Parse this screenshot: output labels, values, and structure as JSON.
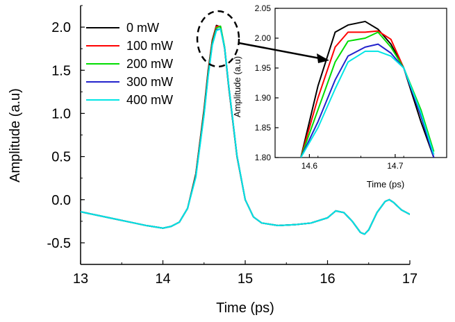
{
  "chart_data": [
    {
      "type": "line",
      "xlabel": "Time (ps)",
      "ylabel": "Amplitude (a.u)",
      "xlim": [
        13,
        17
      ],
      "ylim": [
        -0.75,
        2.25
      ],
      "x_ticks": [
        "13",
        "14",
        "15",
        "16",
        "17"
      ],
      "y_ticks": [
        "-0.5",
        "0.0",
        "0.5",
        "1.0",
        "1.5",
        "2.0"
      ],
      "legend_position": "top-left",
      "x": [
        13.0,
        13.2,
        13.4,
        13.6,
        13.8,
        14.0,
        14.1,
        14.2,
        14.3,
        14.4,
        14.5,
        14.55,
        14.6,
        14.65,
        14.7,
        14.75,
        14.8,
        14.9,
        15.0,
        15.1,
        15.2,
        15.4,
        15.6,
        15.8,
        16.0,
        16.1,
        16.2,
        16.3,
        16.4,
        16.45,
        16.5,
        16.6,
        16.7,
        16.75,
        16.8,
        16.9,
        17.0
      ],
      "series": [
        {
          "name": "0 mW",
          "color": "#000000",
          "values": [
            -0.14,
            -0.18,
            -0.22,
            -0.26,
            -0.3,
            -0.33,
            -0.31,
            -0.26,
            -0.1,
            0.3,
            1.05,
            1.5,
            1.85,
            2.02,
            2.0,
            1.75,
            1.3,
            0.5,
            0.0,
            -0.2,
            -0.27,
            -0.3,
            -0.29,
            -0.27,
            -0.21,
            -0.13,
            -0.15,
            -0.25,
            -0.38,
            -0.4,
            -0.35,
            -0.15,
            -0.02,
            0.0,
            -0.03,
            -0.12,
            -0.17
          ]
        },
        {
          "name": "100 mW",
          "color": "#ff0000",
          "values": [
            -0.14,
            -0.18,
            -0.22,
            -0.26,
            -0.3,
            -0.33,
            -0.31,
            -0.26,
            -0.1,
            0.29,
            1.03,
            1.48,
            1.84,
            2.01,
            2.01,
            1.76,
            1.31,
            0.5,
            0.0,
            -0.2,
            -0.27,
            -0.3,
            -0.29,
            -0.27,
            -0.21,
            -0.13,
            -0.15,
            -0.25,
            -0.38,
            -0.4,
            -0.35,
            -0.15,
            -0.02,
            0.0,
            -0.03,
            -0.12,
            -0.17
          ]
        },
        {
          "name": "200 mW",
          "color": "#00dd00",
          "values": [
            -0.14,
            -0.18,
            -0.22,
            -0.26,
            -0.3,
            -0.33,
            -0.31,
            -0.26,
            -0.1,
            0.28,
            1.01,
            1.46,
            1.82,
            1.99,
            2.01,
            1.77,
            1.32,
            0.51,
            0.0,
            -0.2,
            -0.27,
            -0.3,
            -0.29,
            -0.27,
            -0.21,
            -0.13,
            -0.15,
            -0.25,
            -0.38,
            -0.4,
            -0.35,
            -0.15,
            -0.02,
            0.0,
            -0.03,
            -0.12,
            -0.17
          ]
        },
        {
          "name": "300 mW",
          "color": "#2222cc",
          "values": [
            -0.14,
            -0.18,
            -0.22,
            -0.26,
            -0.3,
            -0.33,
            -0.31,
            -0.26,
            -0.1,
            0.27,
            0.99,
            1.44,
            1.8,
            1.97,
            1.98,
            1.76,
            1.32,
            0.51,
            0.0,
            -0.2,
            -0.27,
            -0.3,
            -0.29,
            -0.27,
            -0.21,
            -0.13,
            -0.15,
            -0.25,
            -0.38,
            -0.4,
            -0.35,
            -0.15,
            -0.02,
            0.0,
            -0.03,
            -0.12,
            -0.17
          ]
        },
        {
          "name": "400 mW",
          "color": "#00e5e5",
          "values": [
            -0.14,
            -0.18,
            -0.22,
            -0.26,
            -0.3,
            -0.33,
            -0.31,
            -0.26,
            -0.1,
            0.26,
            0.98,
            1.43,
            1.79,
            1.96,
            1.98,
            1.76,
            1.32,
            0.51,
            0.0,
            -0.2,
            -0.27,
            -0.3,
            -0.29,
            -0.27,
            -0.21,
            -0.13,
            -0.15,
            -0.25,
            -0.38,
            -0.4,
            -0.35,
            -0.15,
            -0.02,
            0.0,
            -0.03,
            -0.12,
            -0.17
          ]
        }
      ]
    },
    {
      "type": "line",
      "inset": true,
      "xlabel": "Time (ps)",
      "ylabel": "Amplitude (a.u)",
      "xlim": [
        14.56,
        14.76
      ],
      "ylim": [
        1.8,
        2.05
      ],
      "x_ticks": [
        "14.6",
        "14.7"
      ],
      "y_ticks": [
        "1.80",
        "1.85",
        "1.90",
        "1.95",
        "2.00",
        "2.05"
      ],
      "x": [
        14.59,
        14.61,
        14.63,
        14.645,
        14.665,
        14.68,
        14.695,
        14.71,
        14.73,
        14.745
      ],
      "series": [
        {
          "name": "0 mW",
          "color": "#000000",
          "values": [
            1.8,
            1.92,
            2.01,
            2.022,
            2.028,
            2.015,
            1.99,
            1.95,
            1.86,
            1.8
          ]
        },
        {
          "name": "100 mW",
          "color": "#ff0000",
          "values": [
            1.8,
            1.9,
            1.985,
            2.01,
            2.01,
            2.012,
            1.998,
            1.95,
            1.87,
            1.805
          ]
        },
        {
          "name": "200 mW",
          "color": "#00dd00",
          "values": [
            1.8,
            1.88,
            1.96,
            1.995,
            2.0,
            2.01,
            1.985,
            1.95,
            1.88,
            1.81
          ]
        },
        {
          "name": "300 mW",
          "color": "#2222cc",
          "values": [
            1.8,
            1.86,
            1.93,
            1.97,
            1.985,
            1.99,
            1.975,
            1.95,
            1.87,
            1.8
          ]
        },
        {
          "name": "400 mW",
          "color": "#00e5e5",
          "values": [
            1.8,
            1.85,
            1.915,
            1.96,
            1.978,
            1.978,
            1.97,
            1.95,
            1.875,
            1.805
          ]
        }
      ]
    }
  ]
}
